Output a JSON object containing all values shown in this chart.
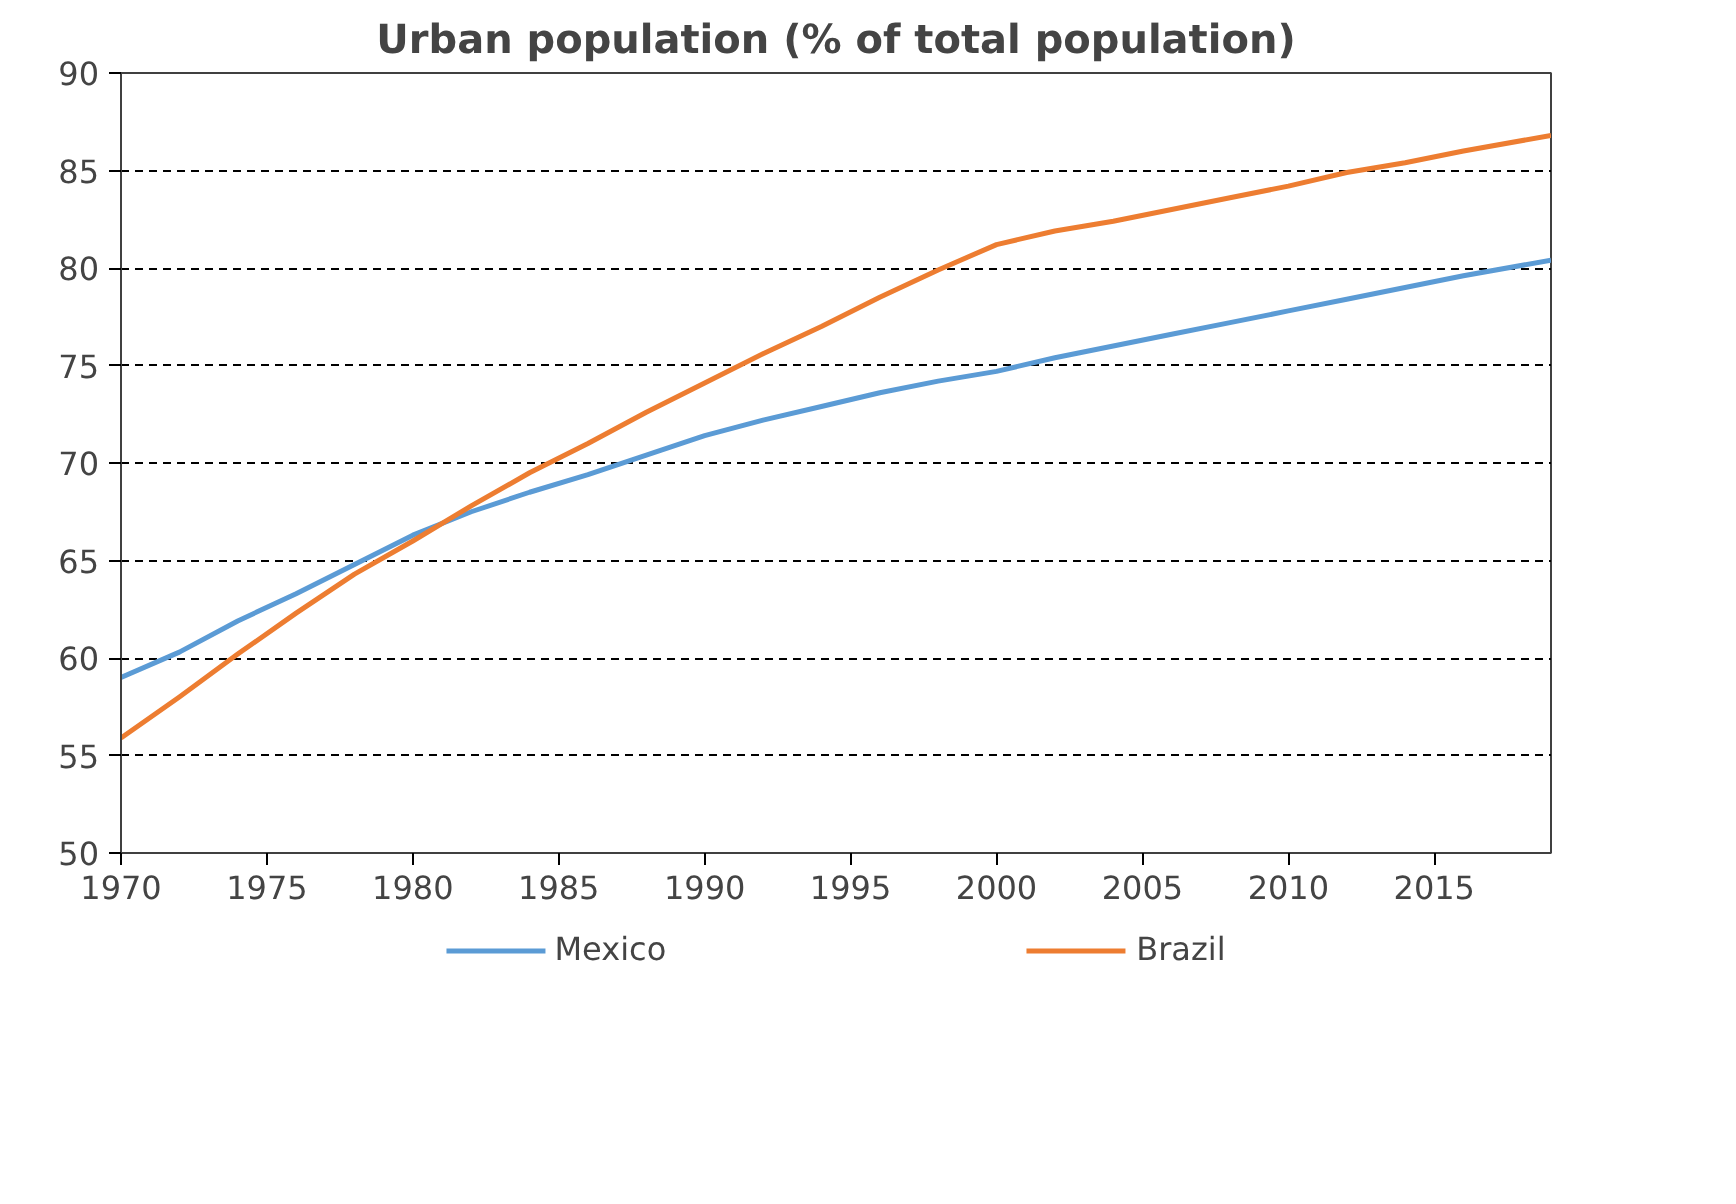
{
  "chart_data": {
    "type": "line",
    "title": "Urban population (% of total population)",
    "x": [
      1970,
      1972,
      1974,
      1976,
      1978,
      1980,
      1982,
      1984,
      1986,
      1988,
      1990,
      1992,
      1994,
      1996,
      1998,
      2000,
      2002,
      2004,
      2006,
      2008,
      2010,
      2012,
      2014,
      2016,
      2019
    ],
    "series": [
      {
        "name": "Mexico",
        "color": "#5b9bd5",
        "values": [
          59.0,
          60.3,
          61.9,
          63.3,
          64.8,
          66.3,
          67.5,
          68.5,
          69.4,
          70.4,
          71.4,
          72.2,
          72.9,
          73.6,
          74.2,
          74.7,
          75.4,
          76.0,
          76.6,
          77.2,
          77.8,
          78.4,
          79.0,
          79.6,
          80.4
        ]
      },
      {
        "name": "Brazil",
        "color": "#ed7d31",
        "values": [
          55.9,
          58.0,
          60.2,
          62.3,
          64.3,
          66.0,
          67.8,
          69.5,
          71.0,
          72.6,
          74.1,
          75.6,
          77.0,
          78.5,
          79.9,
          81.2,
          81.9,
          82.4,
          83.0,
          83.6,
          84.2,
          84.9,
          85.4,
          86.0,
          86.8
        ]
      }
    ],
    "xlim": [
      1970,
      2019
    ],
    "xticks": [
      1970,
      1975,
      1980,
      1985,
      1990,
      1995,
      2000,
      2005,
      2010,
      2015
    ],
    "ylim": [
      50,
      90
    ],
    "yticks": [
      50,
      55,
      60,
      65,
      70,
      75,
      80,
      85,
      90
    ],
    "grid": "y",
    "legend": "bottom",
    "line_style": "solid"
  }
}
